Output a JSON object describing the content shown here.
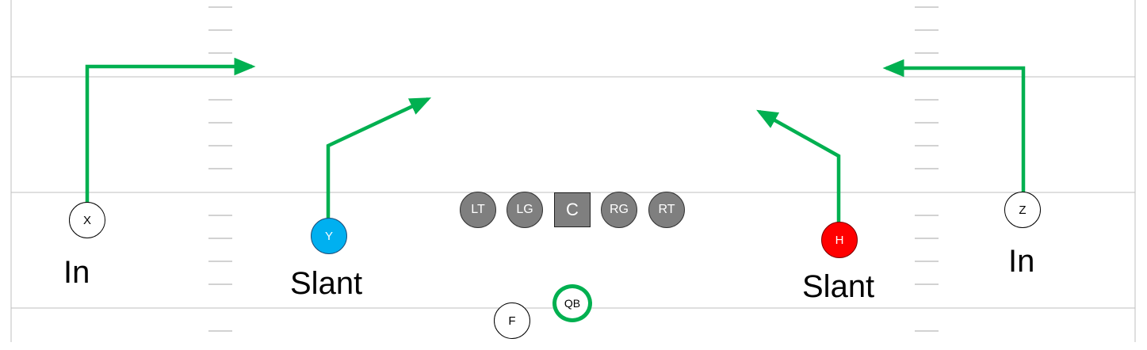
{
  "colors": {
    "route": "#00b050",
    "field_line": "#bfbfbf",
    "hash_mark": "#a6a6a6",
    "lineman_fill": "#7f7f7f",
    "y_fill": "#00b0f0",
    "h_fill": "#ff0000",
    "qb_ring": "#00b050"
  },
  "players": {
    "x": "X",
    "y": "Y",
    "h": "H",
    "z": "Z",
    "f": "F",
    "qb": "QB",
    "lt": "LT",
    "lg": "LG",
    "c": "C",
    "rg": "RG",
    "rt": "RT"
  },
  "routes": {
    "x": "In",
    "y": "Slant",
    "h": "Slant",
    "z": "In"
  }
}
